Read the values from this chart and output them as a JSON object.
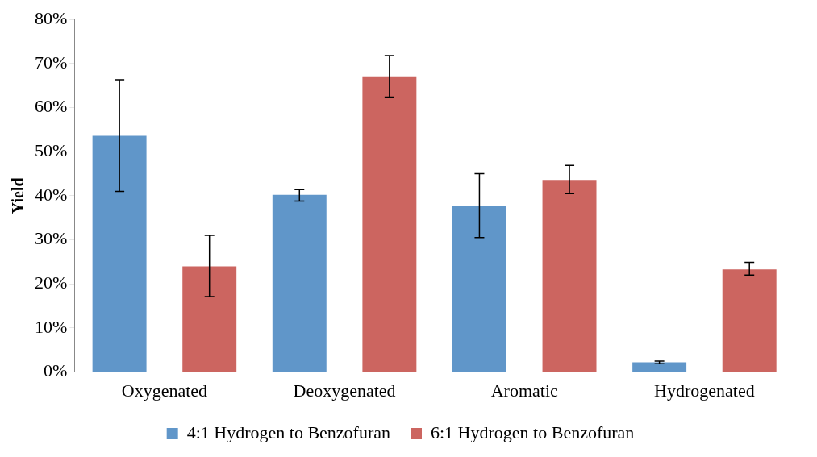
{
  "chart_data": {
    "type": "bar",
    "ylabel": "Yield",
    "categories": [
      "Oxygenated",
      "Deoxygenated",
      "Aromatic",
      "Hydrogenated"
    ],
    "series": [
      {
        "name": "4:1 Hydrogen to Benzofuran",
        "color": "#6096c9",
        "values": [
          53.6,
          40.2,
          37.7,
          2.2
        ],
        "errors": [
          [
            41.0,
            66.3
          ],
          [
            38.8,
            41.4
          ],
          [
            30.5,
            45.0
          ],
          [
            1.9,
            2.5
          ]
        ]
      },
      {
        "name": "6:1 Hydrogen to Benzofuran",
        "color": "#cc6560",
        "values": [
          24.0,
          67.1,
          43.6,
          23.3
        ],
        "errors": [
          [
            17.1,
            31.0
          ],
          [
            62.4,
            71.8
          ],
          [
            40.5,
            46.9
          ],
          [
            22.0,
            24.9
          ]
        ]
      }
    ],
    "ylim": [
      0,
      80
    ],
    "yticks": [
      {
        "value": 0,
        "label": "0%"
      },
      {
        "value": 10,
        "label": "10%"
      },
      {
        "value": 20,
        "label": "20%"
      },
      {
        "value": 30,
        "label": "30%"
      },
      {
        "value": 40,
        "label": "40%"
      },
      {
        "value": 50,
        "label": "50%"
      },
      {
        "value": 60,
        "label": "60%"
      },
      {
        "value": 70,
        "label": "70%"
      },
      {
        "value": 80,
        "label": "80%"
      }
    ],
    "grid": false,
    "legend": "bottom"
  }
}
